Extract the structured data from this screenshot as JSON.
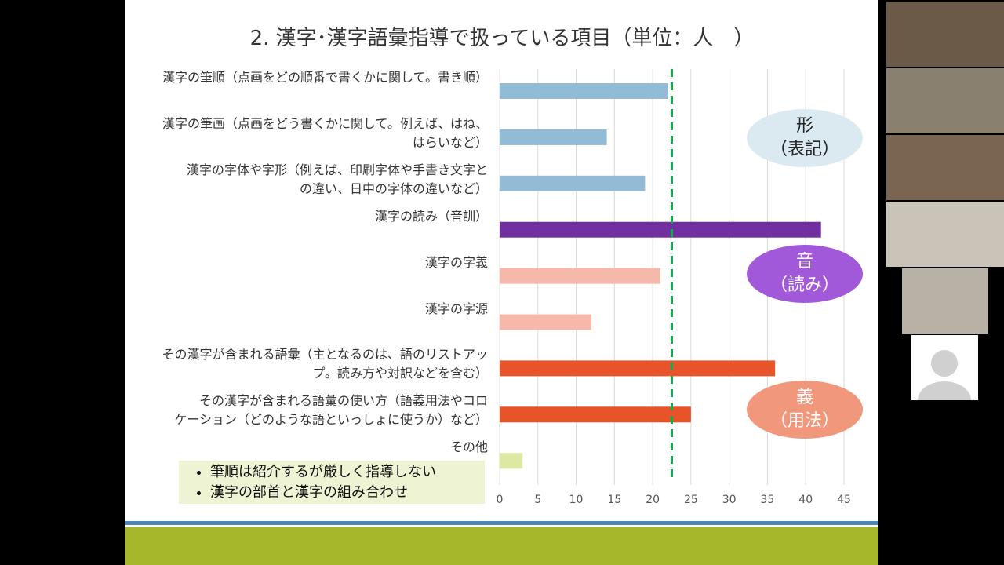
{
  "chart_data": {
    "type": "hbar",
    "title": "2. 漢字･漢字語彙指導で扱っている項目（単位：人　）",
    "categories": [
      "漢字の筆順（点画をどの順番で書くかに関して。書き順）",
      "漢字の筆画（点画をどう書くかに関して。例えば、はね、\nはらいなど）",
      "漢字の字体や字形（例えば、印刷字体や手書き文字と\nの違い、日中の字体の違いなど）",
      "漢字の読み（音訓）",
      "漢字の字義",
      "漢字の字源",
      "その漢字が含まれる語彙（主となるのは、語のリストアッ\nプ。読み方や対訳などを含む）",
      "その漢字が含まれる語彙の使い方（語義用法やコロ\nケーション（どのような語といっしょに使うか）など）",
      "その他"
    ],
    "values": [
      22,
      14,
      19,
      42,
      21,
      12,
      36,
      25,
      3
    ],
    "colors": [
      "#92bcd6",
      "#92bcd6",
      "#92bcd6",
      "#7030a0",
      "#f5b8aa",
      "#f5b8aa",
      "#e8542a",
      "#e8542a",
      "#dde9a2"
    ],
    "xlim": [
      0,
      45
    ],
    "xticks": [
      0,
      5,
      10,
      15,
      20,
      25,
      30,
      35,
      40,
      45
    ],
    "grid": true,
    "reference_line": {
      "value": 22.5,
      "color": "#1aa84a"
    },
    "annotations": [
      {
        "text": "形\n（表記）",
        "color": "#dbe9f1",
        "text_color": "#222222"
      },
      {
        "text": "音\n（読み）",
        "color": "#a259d9",
        "text_color": "#ffffff"
      },
      {
        "text": "義\n（用法）",
        "color": "#f0977c",
        "text_color": "#ffffff"
      }
    ],
    "notes": [
      "筆順は紹介するが厳しく指導しない",
      "漢字の部首と漢字の組み合わせ"
    ]
  }
}
